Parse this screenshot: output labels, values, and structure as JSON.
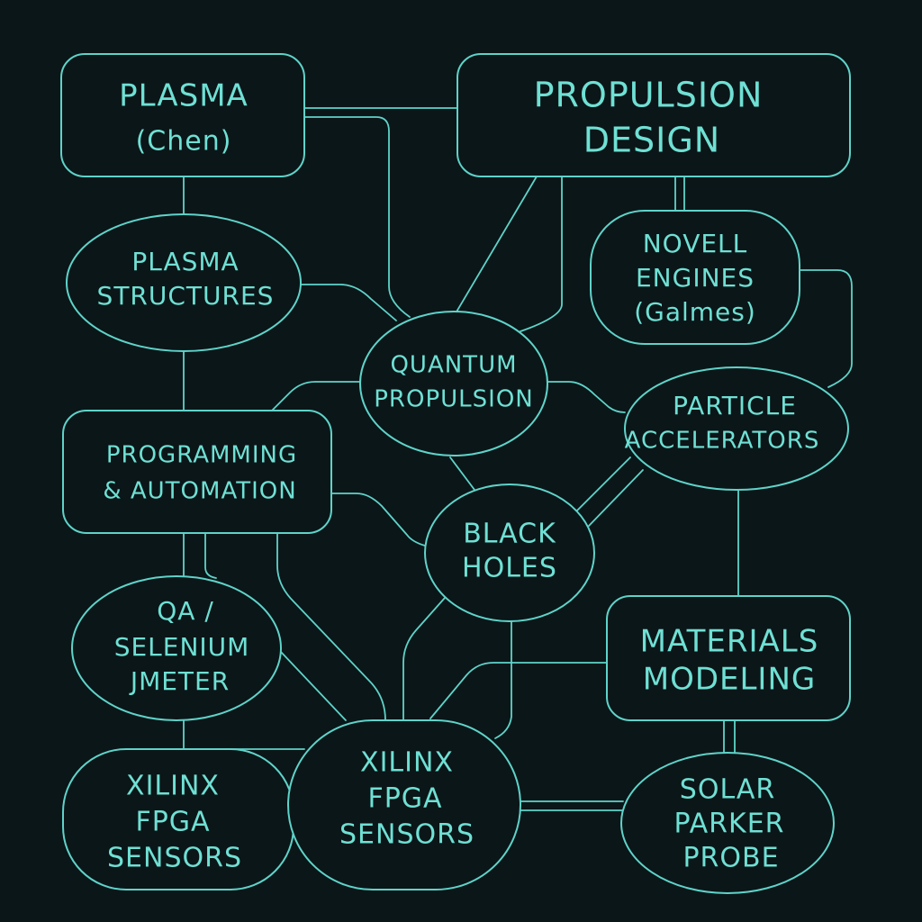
{
  "diagram": {
    "nodes": {
      "plasma_chen": {
        "lines": [
          "PLASMA",
          "(Chen)"
        ]
      },
      "propulsion_design": {
        "lines": [
          "PROPULSION",
          "DESIGN"
        ]
      },
      "plasma_structures": {
        "lines": [
          "PLASMA",
          "STRUCTURES"
        ]
      },
      "novell_engines": {
        "lines": [
          "NOVELL",
          "ENGINES",
          "(Galmes)"
        ]
      },
      "quantum_propulsion": {
        "lines": [
          "QUANTUM",
          "PROPULSION"
        ]
      },
      "particle_accelerators": {
        "lines": [
          "PARTICLE",
          "ACCELERATORS"
        ]
      },
      "programming_automation": {
        "lines": [
          "PROGRAMMING",
          "& AUTOMATION"
        ]
      },
      "black_holes": {
        "lines": [
          "BLACK",
          "HOLES"
        ]
      },
      "qa_selenium": {
        "lines": [
          "QA /",
          "SELENIUM",
          "JMETER"
        ]
      },
      "materials_modeling": {
        "lines": [
          "MATERIALS",
          "MODELING"
        ]
      },
      "xilinx_left": {
        "lines": [
          "XILINX",
          "FPGA",
          "SENSORS"
        ]
      },
      "xilinx_center": {
        "lines": [
          "XILINX",
          "FPGA",
          "SENSORS"
        ]
      },
      "solar_parker": {
        "lines": [
          "SOLAR",
          "PARKER",
          "PROBE"
        ]
      }
    }
  }
}
